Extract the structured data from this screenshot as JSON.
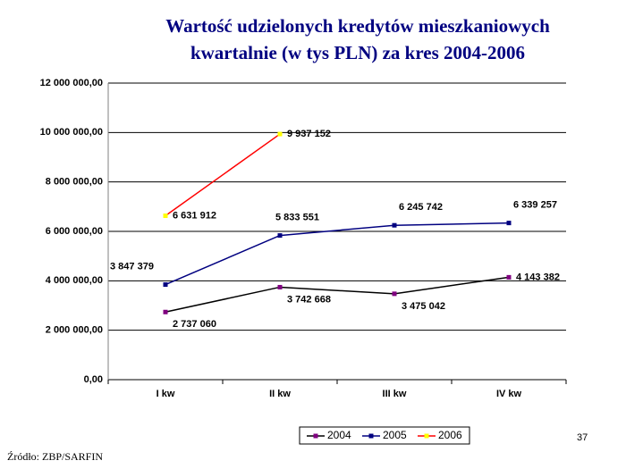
{
  "chart_data": {
    "type": "line",
    "title": "Wartość udzielonych kredytów mieszkaniowych kwartalnie (w tys PLN) za kres 2004-2006",
    "categories": [
      "I kw",
      "II kw",
      "III kw",
      "IV kw"
    ],
    "series": [
      {
        "name": "2004",
        "color": "#800080",
        "line_color": "#000000",
        "values": [
          2737060,
          3742668,
          3475042,
          4143382
        ],
        "value_labels": [
          "2 737 060",
          "3 742 668",
          "3 475 042",
          "4 143 382"
        ]
      },
      {
        "name": "2005",
        "color": "#000080",
        "line_color": "#000080",
        "values": [
          3847379,
          5833551,
          6245742,
          6339257
        ],
        "value_labels": [
          "3 847 379",
          "5 833 551",
          "6 245 742",
          "6 339 257"
        ]
      },
      {
        "name": "2006",
        "color": "#ffff00",
        "line_color": "#ff0000",
        "values": [
          6631912,
          9937152,
          null,
          null
        ],
        "value_labels": [
          "6 631 912",
          "9 937 152",
          null,
          null
        ]
      }
    ],
    "ylim": [
      0,
      12000000
    ],
    "yticks": [
      {
        "value": 0,
        "label": "0,00"
      },
      {
        "value": 2000000,
        "label": "2 000 000,00"
      },
      {
        "value": 4000000,
        "label": "4 000 000,00"
      },
      {
        "value": 6000000,
        "label": "6 000 000,00"
      },
      {
        "value": 8000000,
        "label": "8 000 000,00"
      },
      {
        "value": 10000000,
        "label": "10 000 000,00"
      },
      {
        "value": 12000000,
        "label": "12 000 000,00"
      }
    ],
    "grid": true,
    "legend": "bottom",
    "page_number": "37",
    "source": "Źródło: ZBP/SARFIN"
  }
}
